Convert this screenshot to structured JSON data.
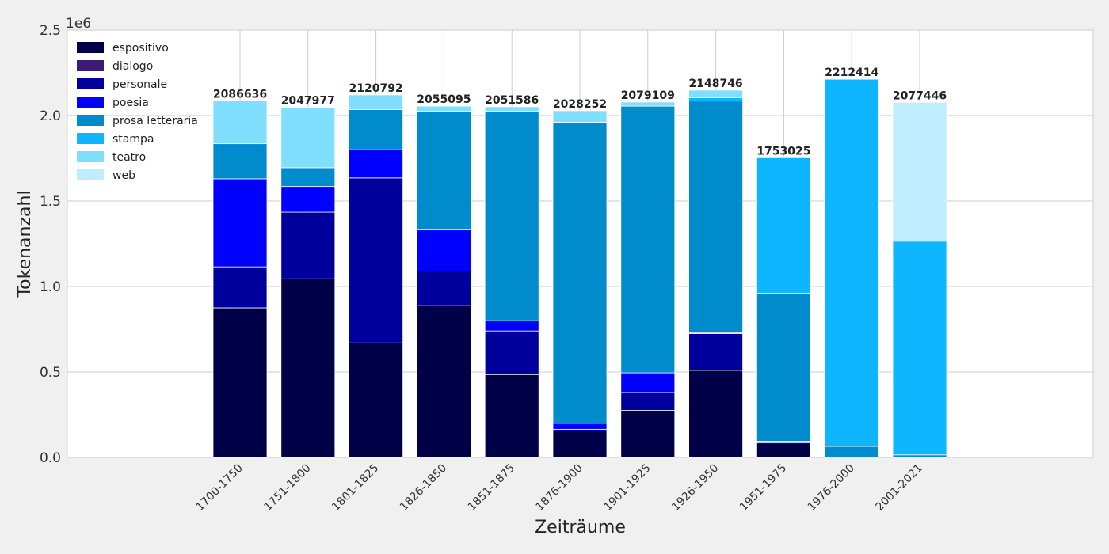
{
  "chart_data": {
    "type": "bar",
    "stacked": true,
    "xlabel": "Zeiträume",
    "ylabel": "Tokenanzahl",
    "ylim": [
      0,
      2500000
    ],
    "y_scale_label": "1e6",
    "yticks": [
      "0.0",
      "0.5",
      "1.0",
      "1.5",
      "2.0",
      "2.5"
    ],
    "grid": true,
    "legend_placement": "top-left",
    "categories": [
      "1700-1750",
      "1751-1800",
      "1801-1825",
      "1826-1850",
      "1851-1875",
      "1876-1900",
      "1901-1925",
      "1926-1950",
      "1951-1975",
      "1976-2000",
      "2001-2021"
    ],
    "totals": [
      2086636,
      2047977,
      2120792,
      2055095,
      2051586,
      2028252,
      2079109,
      2148746,
      1753025,
      2212414,
      2077446
    ],
    "series": [
      {
        "name": "espositivo",
        "color": "#000048",
        "values": [
          875000,
          1045000,
          670000,
          890000,
          485000,
          155000,
          275000,
          510000,
          85000,
          0,
          0
        ]
      },
      {
        "name": "dialogo",
        "color": "#3d1a78",
        "values": [
          0,
          0,
          0,
          0,
          0,
          0,
          0,
          0,
          0,
          0,
          0
        ]
      },
      {
        "name": "personale",
        "color": "#00009c",
        "values": [
          240000,
          390000,
          965000,
          200000,
          255000,
          10000,
          105000,
          215000,
          10000,
          0,
          0
        ]
      },
      {
        "name": "poesia",
        "color": "#0000ff",
        "values": [
          515000,
          150000,
          165000,
          245000,
          60000,
          35000,
          115000,
          5000,
          0,
          0,
          0
        ]
      },
      {
        "name": "prosa letteraria",
        "color": "#008bcc",
        "values": [
          205000,
          110000,
          235000,
          690000,
          1225000,
          1760000,
          1560000,
          1355000,
          865000,
          65000,
          15000
        ]
      },
      {
        "name": "stampa",
        "color": "#0db6ff",
        "values": [
          0,
          0,
          0,
          0,
          0,
          0,
          0,
          20000,
          793025,
          2147414,
          1250000
        ]
      },
      {
        "name": "teatro",
        "color": "#80dfff",
        "values": [
          251636,
          352977,
          85792,
          30095,
          26586,
          68252,
          24109,
          43746,
          0,
          0,
          0
        ]
      },
      {
        "name": "web",
        "color": "#c0ecff",
        "values": [
          0,
          0,
          0,
          0,
          0,
          0,
          0,
          0,
          0,
          0,
          812446
        ]
      }
    ]
  }
}
